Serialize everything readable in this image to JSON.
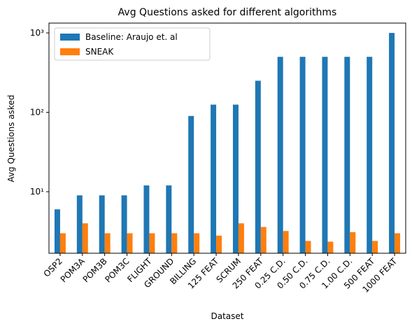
{
  "chart_data": {
    "type": "bar",
    "title": "Avg Questions asked for different algorithms",
    "xlabel": "Dataset",
    "ylabel": "Avg Questions asked",
    "categories": [
      "OSP2",
      "POM3A",
      "POM3B",
      "POM3C",
      "FLIGHT",
      "GROUND",
      "BILLING",
      "125 FEAT",
      "SCRUM",
      "250 FEAT",
      "0.25 C.D.",
      "0.50 C.D.",
      "0.75 C.D.",
      "1.00 C.D.",
      "500 FEAT",
      "1000 FEAT"
    ],
    "series": [
      {
        "name": "Baseline: Araujo et. al",
        "color": "#1f77b4",
        "values": [
          6,
          9,
          9,
          9,
          12,
          12,
          90,
          125,
          125,
          250,
          500,
          500,
          500,
          500,
          500,
          1000
        ]
      },
      {
        "name": "SNEAK",
        "color": "#ff7f0e",
        "values": [
          3,
          4,
          3,
          3,
          3,
          3,
          3,
          2.8,
          4,
          3.6,
          3.2,
          2.4,
          2.35,
          3.1,
          2.4,
          3
        ]
      }
    ],
    "ylim": [
      1.68,
      1330
    ],
    "log_y": true,
    "yticks": [
      {
        "value": 10,
        "label": "10¹"
      },
      {
        "value": 100,
        "label": "10²"
      },
      {
        "value": 1000,
        "label": "10³"
      }
    ],
    "legend": "upper left",
    "grid": false
  }
}
